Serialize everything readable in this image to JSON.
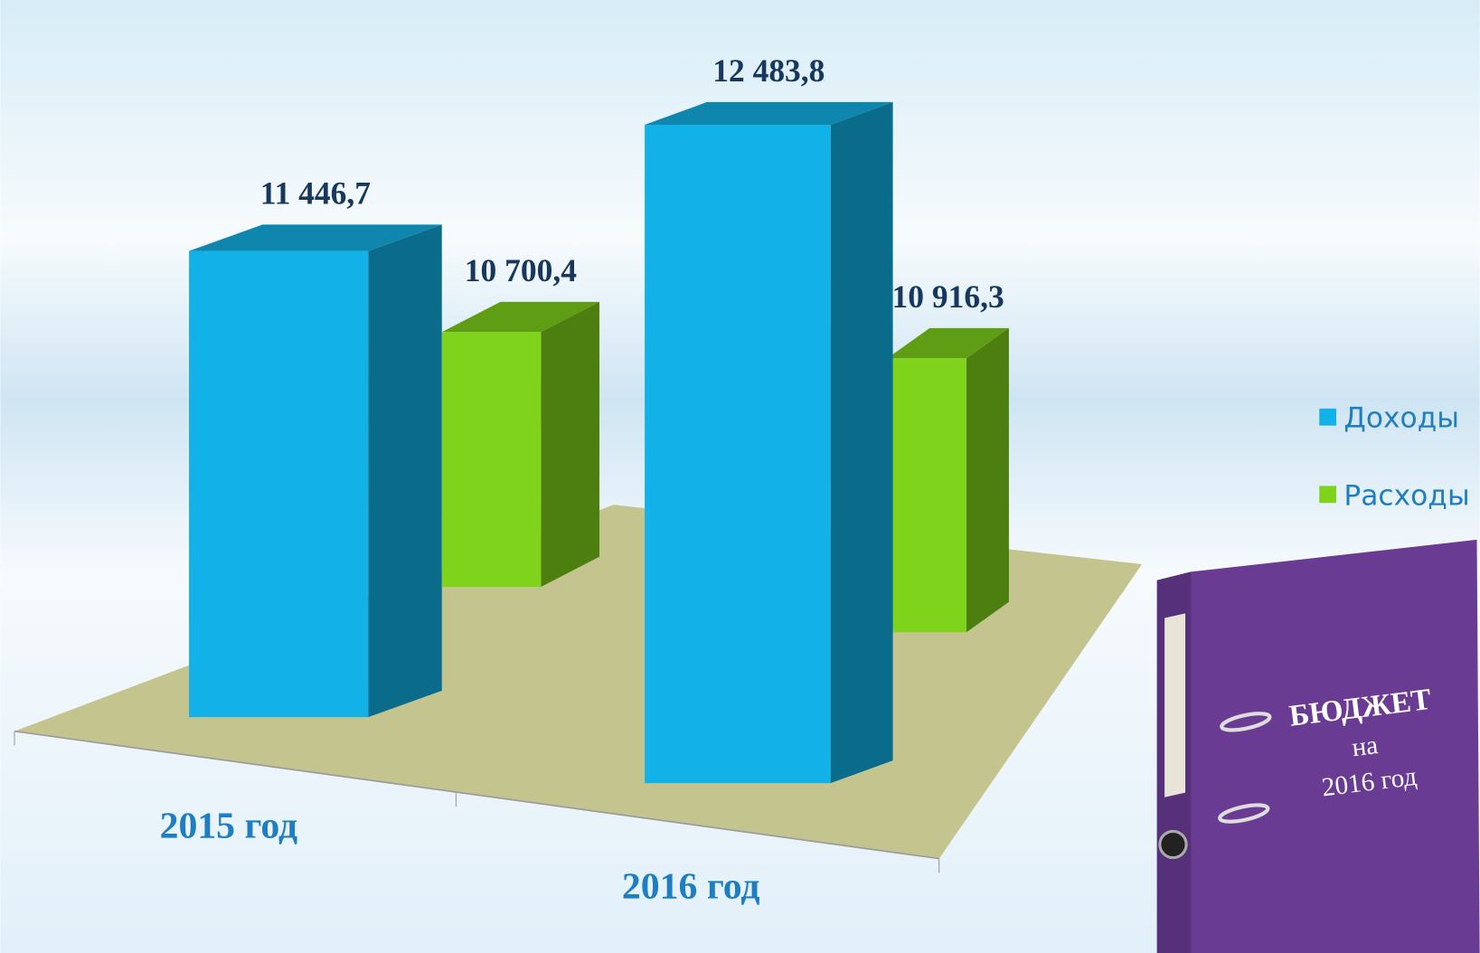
{
  "chart_data": {
    "type": "bar3d",
    "categories": [
      "2015 год",
      "2016 год"
    ],
    "series": [
      {
        "name": "Доходы",
        "color": "#12b2e8",
        "values": [
          11446.7,
          12483.8
        ],
        "value_labels": [
          "11 446,7",
          "12 483,8"
        ]
      },
      {
        "name": "Расходы",
        "color": "#7fd31a",
        "values": [
          10700.4,
          10916.3
        ],
        "value_labels": [
          "10 700,4",
          "10 916,3"
        ]
      }
    ],
    "ylim": [
      9800,
      12800
    ],
    "legend": "right"
  },
  "folder": {
    "lines": [
      "БЮДЖЕТ",
      "на",
      "2016 год"
    ]
  }
}
